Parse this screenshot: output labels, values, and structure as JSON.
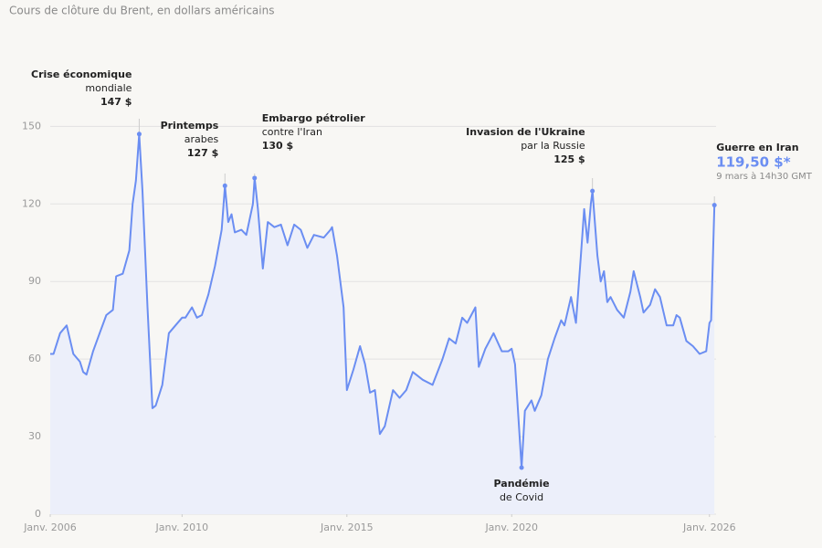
{
  "chart_data": {
    "type": "area",
    "title": "Cours de clôture du Brent, en dollars américains",
    "color": "#6b8ef2",
    "fill": "#eceffa",
    "x": [
      2006.0,
      2006.1,
      2006.3,
      2006.5,
      2006.7,
      2006.9,
      2007.0,
      2007.1,
      2007.3,
      2007.5,
      2007.7,
      2007.9,
      2008.0,
      2008.2,
      2008.4,
      2008.5,
      2008.6,
      2008.7,
      2008.8,
      2008.95,
      2009.1,
      2009.2,
      2009.4,
      2009.6,
      2009.8,
      2010.0,
      2010.1,
      2010.3,
      2010.45,
      2010.6,
      2010.8,
      2011.0,
      2011.2,
      2011.3,
      2011.4,
      2011.5,
      2011.6,
      2011.8,
      2011.95,
      2012.15,
      2012.2,
      2012.3,
      2012.45,
      2012.6,
      2012.8,
      2013.0,
      2013.1,
      2013.2,
      2013.4,
      2013.6,
      2013.8,
      2014.0,
      2014.3,
      2014.5,
      2014.55,
      2014.7,
      2014.9,
      2015.0,
      2015.2,
      2015.4,
      2015.55,
      2015.7,
      2015.85,
      2016.0,
      2016.15,
      2016.4,
      2016.6,
      2016.8,
      2017.0,
      2017.3,
      2017.6,
      2017.9,
      2018.1,
      2018.3,
      2018.5,
      2018.65,
      2018.9,
      2019.0,
      2019.2,
      2019.45,
      2019.7,
      2019.9,
      2020.0,
      2020.1,
      2020.3,
      2020.4,
      2020.6,
      2020.7,
      2020.9,
      2021.1,
      2021.3,
      2021.5,
      2021.6,
      2021.8,
      2021.95,
      2022.1,
      2022.2,
      2022.3,
      2022.4,
      2022.45,
      2022.6,
      2022.7,
      2022.8,
      2022.9,
      2023.0,
      2023.2,
      2023.4,
      2023.6,
      2023.7,
      2023.9,
      2024.0,
      2024.2,
      2024.35,
      2024.5,
      2024.7,
      2024.9,
      2025.0,
      2025.1,
      2025.3,
      2025.5,
      2025.7,
      2025.9,
      2026.0,
      2026.05,
      2026.15
    ],
    "values": [
      62,
      62,
      70,
      73,
      62,
      59,
      55,
      54,
      63,
      70,
      77,
      79,
      92,
      93,
      102,
      120,
      129,
      147,
      125,
      80,
      41,
      42,
      50,
      70,
      73,
      76,
      76,
      80,
      76,
      77,
      85,
      96,
      110,
      127,
      113,
      116,
      109,
      110,
      108,
      120,
      130,
      118,
      95,
      113,
      111,
      112,
      108,
      104,
      112,
      110,
      103,
      108,
      107,
      110,
      111,
      100,
      80,
      48,
      56,
      65,
      58,
      47,
      48,
      31,
      34,
      48,
      45,
      48,
      55,
      52,
      50,
      60,
      68,
      66,
      76,
      74,
      80,
      57,
      64,
      70,
      63,
      63,
      64,
      58,
      18,
      40,
      44,
      40,
      46,
      60,
      68,
      75,
      73,
      84,
      74,
      100,
      118,
      105,
      120,
      125,
      100,
      90,
      94,
      82,
      84,
      79,
      76,
      86,
      94,
      84,
      78,
      81,
      87,
      84,
      73,
      73,
      77,
      76,
      67,
      65,
      62,
      63,
      74,
      75,
      119.5
    ],
    "xlim": [
      2006,
      2026.2
    ],
    "ylim": [
      0,
      160
    ],
    "yticks": [
      0,
      30,
      60,
      90,
      120,
      150
    ],
    "xticks": [
      {
        "value": 2006,
        "label": "Janv. 2006"
      },
      {
        "value": 2010,
        "label": "Janv. 2010"
      },
      {
        "value": 2015,
        "label": "Janv. 2015"
      },
      {
        "value": 2020,
        "label": "Janv. 2020"
      },
      {
        "value": 2026,
        "label": "Janv. 2026"
      }
    ],
    "grid": true,
    "annotations": [
      {
        "lines": [
          "Crise économique",
          "mondiale"
        ],
        "x": 2008.7,
        "value": 147,
        "value_label": "147 $"
      },
      {
        "lines": [
          "Printemps",
          "arabes"
        ],
        "x": 2011.3,
        "value": 127,
        "value_label": "127 $"
      },
      {
        "lines": [
          "Embargo pétrolier",
          "contre l'Iran"
        ],
        "x": 2012.2,
        "value": 130,
        "value_label": "130 $"
      },
      {
        "lines": [
          "Invasion de l'Ukraine",
          "par la Russie"
        ],
        "x": 2022.45,
        "value": 125,
        "value_label": "125 $"
      },
      {
        "lines": [
          "Pandémie",
          "de Covid"
        ],
        "x": 2020.3,
        "value": 18
      },
      {
        "lines": [
          "Guerre en Iran"
        ],
        "x": 2026.15,
        "value": 119.5,
        "value_label": "119,50 $*",
        "note": "9 mars à 14h30 GMT"
      }
    ]
  }
}
